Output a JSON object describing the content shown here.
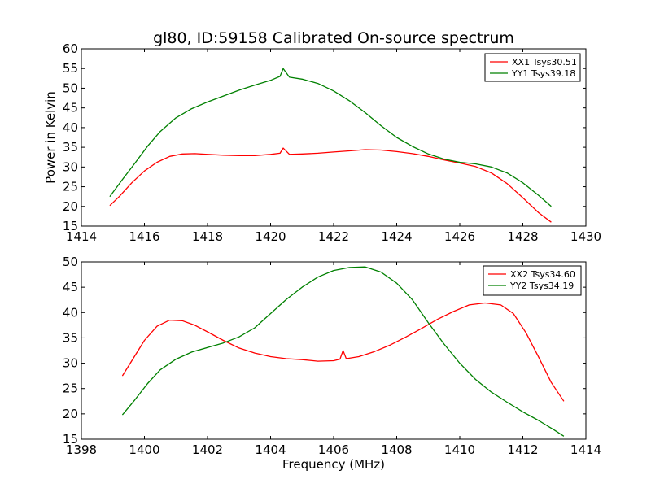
{
  "figure": {
    "title": "gl80, ID:59158 Calibrated On-source spectrum",
    "background": "#ffffff"
  },
  "chart_data": [
    {
      "type": "line",
      "ylabel": "Power in Kelvin",
      "xlabel": "",
      "xlim": [
        1414,
        1430
      ],
      "ylim": [
        15,
        60
      ],
      "xticks": [
        1414,
        1416,
        1418,
        1420,
        1422,
        1424,
        1426,
        1428,
        1430
      ],
      "yticks": [
        15,
        20,
        25,
        30,
        35,
        40,
        45,
        50,
        55,
        60
      ],
      "grid": false,
      "legend_position": "top-right",
      "series": [
        {
          "name": "XX1 Tsys30.51",
          "color": "#ff0000",
          "x": [
            1414.9,
            1415.2,
            1415.6,
            1416.0,
            1416.4,
            1416.8,
            1417.2,
            1417.6,
            1418.0,
            1418.5,
            1419.0,
            1419.5,
            1420.0,
            1420.3,
            1420.4,
            1420.6,
            1421.0,
            1421.5,
            1422.0,
            1422.5,
            1423.0,
            1423.5,
            1424.0,
            1424.5,
            1425.0,
            1425.5,
            1426.0,
            1426.5,
            1427.0,
            1427.5,
            1428.0,
            1428.5,
            1428.9
          ],
          "y": [
            20.2,
            22.5,
            26.0,
            29.0,
            31.2,
            32.7,
            33.3,
            33.4,
            33.2,
            33.0,
            32.9,
            32.9,
            33.2,
            33.5,
            34.8,
            33.2,
            33.3,
            33.5,
            33.8,
            34.1,
            34.4,
            34.3,
            33.9,
            33.4,
            32.7,
            31.8,
            31.0,
            30.1,
            28.5,
            25.8,
            22.2,
            18.4,
            16.0
          ]
        },
        {
          "name": "YY1 Tsys39.18",
          "color": "#008000",
          "x": [
            1414.9,
            1415.3,
            1415.7,
            1416.1,
            1416.5,
            1417.0,
            1417.5,
            1418.0,
            1418.5,
            1419.0,
            1419.5,
            1420.0,
            1420.3,
            1420.4,
            1420.6,
            1421.0,
            1421.5,
            1422.0,
            1422.5,
            1423.0,
            1423.5,
            1424.0,
            1424.5,
            1425.0,
            1425.5,
            1426.0,
            1426.5,
            1427.0,
            1427.5,
            1428.0,
            1428.5,
            1428.9
          ],
          "y": [
            22.5,
            26.8,
            31.0,
            35.3,
            39.0,
            42.5,
            44.8,
            46.5,
            48.0,
            49.5,
            50.8,
            52.0,
            53.0,
            55.0,
            52.8,
            52.3,
            51.2,
            49.3,
            46.8,
            43.8,
            40.5,
            37.5,
            35.2,
            33.3,
            32.0,
            31.2,
            30.8,
            30.0,
            28.5,
            26.0,
            22.8,
            20.0
          ]
        }
      ]
    },
    {
      "type": "line",
      "ylabel": "",
      "xlabel": "Frequency (MHz)",
      "xlim": [
        1398,
        1414
      ],
      "ylim": [
        15,
        50
      ],
      "xticks": [
        1398,
        1400,
        1402,
        1404,
        1406,
        1408,
        1410,
        1412,
        1414
      ],
      "yticks": [
        15,
        20,
        25,
        30,
        35,
        40,
        45,
        50
      ],
      "grid": false,
      "legend_position": "top-right",
      "series": [
        {
          "name": "XX2 Tsys34.60",
          "color": "#ff0000",
          "x": [
            1399.3,
            1399.6,
            1400.0,
            1400.4,
            1400.8,
            1401.2,
            1401.6,
            1402.0,
            1402.5,
            1403.0,
            1403.5,
            1404.0,
            1404.5,
            1405.0,
            1405.5,
            1406.0,
            1406.2,
            1406.3,
            1406.4,
            1406.8,
            1407.3,
            1407.8,
            1408.3,
            1408.8,
            1409.3,
            1409.8,
            1410.3,
            1410.8,
            1411.3,
            1411.7,
            1412.1,
            1412.5,
            1412.9,
            1413.3
          ],
          "y": [
            27.5,
            30.5,
            34.5,
            37.3,
            38.5,
            38.4,
            37.5,
            36.2,
            34.5,
            33.0,
            32.0,
            31.3,
            30.9,
            30.7,
            30.4,
            30.5,
            30.8,
            32.5,
            30.9,
            31.3,
            32.3,
            33.6,
            35.2,
            36.9,
            38.7,
            40.2,
            41.5,
            41.9,
            41.5,
            39.8,
            36.0,
            31.2,
            26.2,
            22.5
          ]
        },
        {
          "name": "YY2 Tsys34.19",
          "color": "#008000",
          "x": [
            1399.3,
            1399.7,
            1400.1,
            1400.5,
            1401.0,
            1401.5,
            1402.0,
            1402.5,
            1403.0,
            1403.5,
            1404.0,
            1404.5,
            1405.0,
            1405.5,
            1406.0,
            1406.5,
            1407.0,
            1407.5,
            1408.0,
            1408.5,
            1409.0,
            1409.5,
            1410.0,
            1410.5,
            1411.0,
            1411.5,
            1412.0,
            1412.5,
            1413.0,
            1413.3
          ],
          "y": [
            19.8,
            22.8,
            26.0,
            28.7,
            30.8,
            32.2,
            33.1,
            34.0,
            35.2,
            37.0,
            39.8,
            42.6,
            45.0,
            47.0,
            48.3,
            48.9,
            49.0,
            48.0,
            45.8,
            42.5,
            38.0,
            33.8,
            30.0,
            26.8,
            24.3,
            22.3,
            20.4,
            18.7,
            16.8,
            15.6
          ]
        }
      ]
    }
  ]
}
